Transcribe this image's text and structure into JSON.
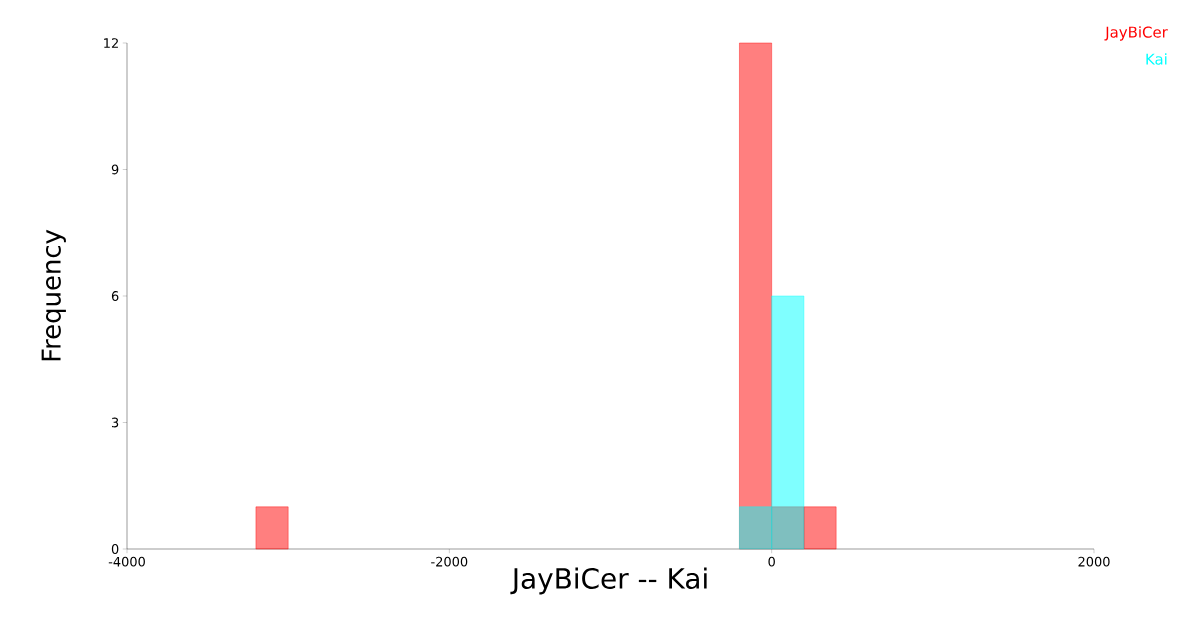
{
  "chart_data": {
    "type": "histogram",
    "xlabel": "JayBiCer -- Kai",
    "ylabel": "Frequency",
    "bins": [
      -3200,
      -3000,
      -2800,
      -2600,
      -2400,
      -2200,
      -2000,
      -1800,
      -1600,
      -1400,
      -1200,
      -1000,
      -800,
      -600,
      -400,
      -200,
      0,
      200,
      400
    ],
    "series": [
      {
        "name": "JayBiCer",
        "color": "#ff0000",
        "values": [
          1,
          0,
          0,
          0,
          0,
          0,
          0,
          0,
          0,
          0,
          0,
          0,
          0,
          0,
          0,
          12,
          1,
          1
        ]
      },
      {
        "name": "Kai",
        "color": "#00ffff",
        "values": [
          0,
          0,
          0,
          0,
          0,
          0,
          0,
          0,
          0,
          0,
          0,
          0,
          0,
          0,
          0,
          1,
          6,
          0
        ]
      }
    ],
    "xlim": [
      -4000,
      2000
    ],
    "xticks": [
      -4000,
      -2000,
      0,
      2000
    ],
    "ylim": [
      0,
      12
    ],
    "yticks": [
      0,
      3,
      6,
      9,
      12
    ],
    "grid": false
  }
}
